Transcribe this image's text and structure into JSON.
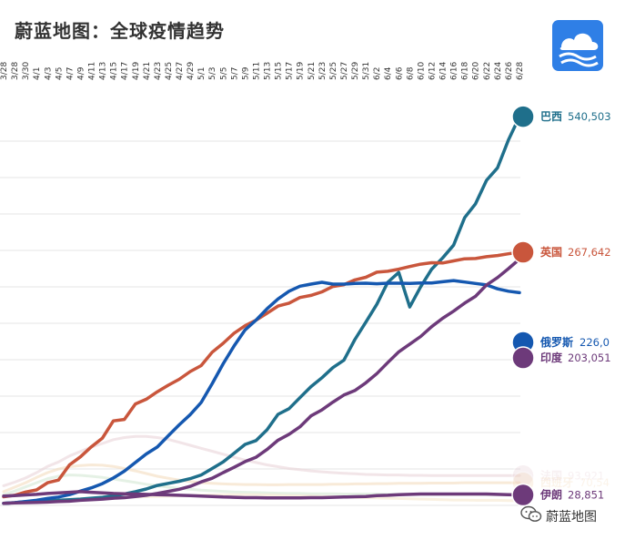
{
  "header": {
    "title": "蔚蓝地图：全球疫情趋势"
  },
  "watermark": {
    "text": "蔚蓝地图"
  },
  "chart_data": {
    "type": "line",
    "x": [
      "3/28",
      "3/28",
      "3/30",
      "4/1",
      "4/3",
      "4/5",
      "4/7",
      "4/9",
      "4/11",
      "4/13",
      "4/15",
      "4/17",
      "4/19",
      "4/21",
      "4/23",
      "4/25",
      "4/27",
      "4/29",
      "5/1",
      "5/3",
      "5/5",
      "5/7",
      "5/9",
      "5/11",
      "5/13",
      "5/15",
      "5/17",
      "5/19",
      "5/21",
      "5/23",
      "5/25",
      "5/27",
      "5/29",
      "5/31",
      "6/2",
      "6/4",
      "6/6",
      "6/8",
      "6/10",
      "6/12",
      "6/14",
      "6/16",
      "6/18",
      "6/20",
      "6/22",
      "6/24",
      "6/26",
      "6/28"
    ],
    "ylim": [
      0,
      550000
    ],
    "grid": true,
    "series": [
      {
        "name": "巴西",
        "label": "540,503",
        "color": "#1f6f8b",
        "emphasis": true,
        "values": [
          1,
          3,
          6,
          7,
          9,
          11,
          13,
          15,
          18,
          21,
          26,
          32,
          40,
          49,
          61,
          68,
          75,
          84,
          96,
          118,
          140,
          169,
          199,
          212,
          248,
          300,
          319,
          356,
          393,
          423,
          457,
          482,
          551,
          610,
          670,
          744,
          777,
          661,
          729,
          788,
          826,
          869,
          961,
          1008,
          1087,
          1129,
          1223,
          1301
        ]
      },
      {
        "name": "英国",
        "label": "267,642",
        "color": "#c9563c",
        "emphasis": true,
        "values": [
          23,
          28,
          39,
          46,
          70,
          79,
          130,
          157,
          191,
          220,
          278,
          283,
          335,
          351,
          376,
          398,
          418,
          444,
          464,
          509,
          539,
          573,
          598,
          617,
          640,
          664,
          674,
          693,
          700,
          712,
          730,
          736,
          752,
          761,
          778,
          781,
          788,
          797,
          805,
          810,
          809,
          816,
          823,
          824,
          830,
          834,
          840,
          845
        ]
      },
      {
        "name": "俄罗斯",
        "label": "226,0",
        "color": "#1558b0",
        "emphasis": true,
        "values": [
          1,
          3,
          7,
          11,
          17,
          22,
          30,
          42,
          53,
          67,
          86,
          109,
          138,
          167,
          190,
          228,
          265,
          299,
          340,
          403,
          470,
          530,
          584,
          617,
          655,
          688,
          714,
          731,
          738,
          744,
          738,
          738,
          740,
          741,
          739,
          741,
          741,
          740,
          742,
          742,
          746,
          750,
          745,
          740,
          735,
          722,
          714,
          709
        ]
      },
      {
        "name": "印度",
        "label": "203,051",
        "color": "#6d3a7a",
        "emphasis": true,
        "values": [
          1,
          2,
          3,
          4,
          5,
          7,
          8,
          11,
          13,
          15,
          18,
          20,
          24,
          28,
          34,
          41,
          48,
          58,
          73,
          85,
          104,
          122,
          141,
          156,
          182,
          213,
          233,
          258,
          295,
          315,
          341,
          365,
          380,
          406,
          437,
          474,
          510,
          536,
          562,
          595,
          623,
          647,
          674,
          697,
          735,
          760,
          790,
          822
        ]
      },
      {
        "name": "法国",
        "label": "93,921",
        "color": "#e8cfd6",
        "emphasis": false,
        "values": [
          60,
          72,
          86,
          104,
          125,
          140,
          160,
          175,
          190,
          202,
          215,
          222,
          226,
          226,
          222,
          216,
          206,
          196,
          186,
          176,
          166,
          156,
          146,
          138,
          130,
          124,
          118,
          114,
          110,
          107,
          104,
          102,
          100,
          98,
          97,
          96,
          96,
          95,
          95,
          94,
          94,
          94,
          94,
          94,
          94,
          94,
          94,
          94
        ]
      },
      {
        "name": "西班牙",
        "label": "70,54",
        "color": "#f3d9b8",
        "emphasis": false,
        "values": [
          40,
          55,
          70,
          88,
          104,
          116,
          124,
          128,
          130,
          129,
          125,
          118,
          110,
          101,
          92,
          85,
          79,
          74,
          70,
          68,
          66,
          65,
          64,
          64,
          63,
          63,
          64,
          64,
          64,
          64,
          65,
          65,
          66,
          66,
          67,
          67,
          68,
          68,
          68,
          69,
          69,
          69,
          70,
          70,
          70,
          70,
          70,
          70
        ]
      },
      {
        "name": "伊朗",
        "label": "28,851",
        "color": "#6d3a7a",
        "emphasis": true,
        "values": [
          25,
          27,
          29,
          31,
          34,
          36,
          38,
          40,
          38,
          36,
          34,
          33,
          32,
          31,
          30,
          29,
          28,
          27,
          25,
          24,
          22,
          21,
          20,
          20,
          19,
          19,
          19,
          19,
          20,
          20,
          21,
          22,
          23,
          24,
          27,
          28,
          30,
          31,
          32,
          32,
          32,
          32,
          32,
          32,
          32,
          31,
          30,
          29
        ]
      },
      {
        "name": "",
        "label": "",
        "color": "#cfe5cf",
        "emphasis": false,
        "values": [
          30,
          42,
          56,
          70,
          84,
          92,
          96,
          95,
          92,
          88,
          83,
          77,
          71,
          65,
          60,
          55,
          51,
          48,
          45,
          43,
          41,
          39,
          38,
          37,
          36,
          35,
          34,
          34,
          33,
          33,
          33,
          32,
          32,
          32,
          32,
          31,
          31,
          31,
          31,
          31,
          31,
          31,
          31,
          31,
          30,
          30,
          30,
          30
        ]
      },
      {
        "name": "",
        "label": "",
        "color": "#f6e6c8",
        "emphasis": false,
        "values": [
          2,
          4,
          6,
          8,
          10,
          12,
          14,
          16,
          18,
          19,
          20,
          21,
          22,
          23,
          24,
          25,
          26,
          27,
          28,
          29,
          30,
          30,
          30,
          30,
          29,
          28,
          27,
          26,
          25,
          24,
          23,
          22,
          21,
          20,
          19,
          18,
          17,
          16,
          15,
          14,
          13,
          12,
          12,
          11,
          11,
          11,
          10,
          10
        ]
      }
    ]
  }
}
